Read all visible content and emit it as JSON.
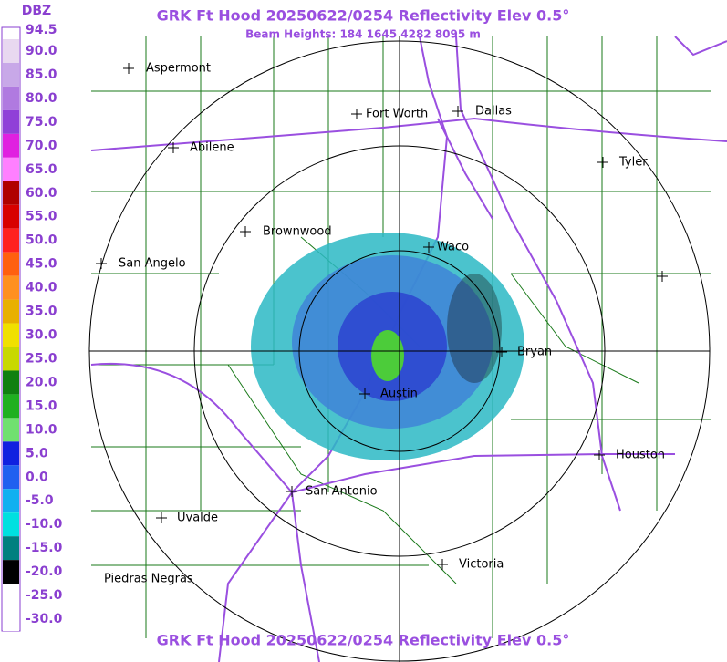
{
  "header": {
    "title": "GRK Ft Hood 20250622/0254 Reflectivity Elev 0.5°",
    "subtitle": "Beam Heights: 184 1645 4282 8095 m",
    "footer": "GRK Ft Hood 20250622/0254 Reflectivity Elev 0.5°"
  },
  "legend": {
    "unit": "DBZ",
    "labels": [
      "94.5",
      "90.0",
      "85.0",
      "80.0",
      "75.0",
      "70.0",
      "65.0",
      "60.0",
      "55.0",
      "50.0",
      "45.0",
      "40.0",
      "35.0",
      "30.0",
      "25.0",
      "20.0",
      "15.0",
      "10.0",
      "5.0",
      "0.0",
      "-5.0",
      "-10.0",
      "-15.0",
      "-20.0",
      "-25.0",
      "-30.0"
    ]
  },
  "cities": [
    {
      "name": "Aspermont"
    },
    {
      "name": "Fort Worth"
    },
    {
      "name": "Dallas"
    },
    {
      "name": "Abilene"
    },
    {
      "name": "Tyler"
    },
    {
      "name": "Brownwood"
    },
    {
      "name": "Waco"
    },
    {
      "name": "San Angelo"
    },
    {
      "name": "Bryan"
    },
    {
      "name": "Austin"
    },
    {
      "name": "Houston"
    },
    {
      "name": "San Antonio"
    },
    {
      "name": "Uvalde"
    },
    {
      "name": "Victoria"
    },
    {
      "name": "Piedras Negras"
    }
  ]
}
